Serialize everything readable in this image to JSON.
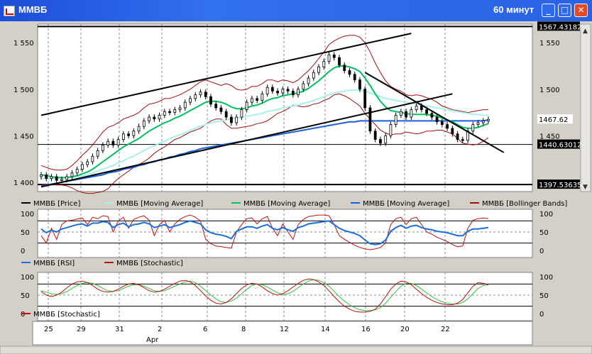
{
  "window": {
    "title": "ММВБ",
    "interval": "60 минут",
    "buttons": {
      "minimize_icon": "minimize-icon",
      "maximize_icon": "maximize-icon",
      "close_icon": "close-icon"
    }
  },
  "colors": {
    "price": "#000000",
    "ma_fast": "#00c060",
    "ma_mid": "#a8f0e8",
    "ma_slow": "#1a5fd8",
    "bollinger": "#a01010",
    "rsi": "#1a6fd8",
    "stoch_k": "#c01010",
    "stoch_d": "#30c040",
    "background": "#ffffff"
  },
  "chart_data": [
    {
      "type": "candlestick",
      "title": "",
      "ylim": [
        1390,
        1570
      ],
      "yticks": [
        "1 550",
        "1 500",
        "1 450",
        "1 400"
      ],
      "right_ticks": [
        "1 550",
        "1 500",
        "1 450"
      ],
      "price_labels": [
        "1567.43182",
        "1467.62",
        "1440.63012",
        "1397.53635"
      ],
      "horizontal_levels": [
        1567.43,
        1440.63,
        1397.54
      ],
      "close": [
        1408,
        1404,
        1406,
        1402,
        1403,
        1406,
        1410,
        1414,
        1419,
        1422,
        1428,
        1434,
        1440,
        1444,
        1440,
        1446,
        1452,
        1450,
        1455,
        1460,
        1466,
        1470,
        1468,
        1472,
        1476,
        1475,
        1478,
        1480,
        1486,
        1490,
        1494,
        1497,
        1492,
        1484,
        1480,
        1476,
        1470,
        1464,
        1470,
        1478,
        1486,
        1490,
        1488,
        1495,
        1502,
        1498,
        1496,
        1500,
        1498,
        1494,
        1500,
        1506,
        1512,
        1518,
        1524,
        1530,
        1537,
        1534,
        1526,
        1520,
        1516,
        1510,
        1500,
        1480,
        1455,
        1446,
        1442,
        1450,
        1462,
        1472,
        1476,
        1470,
        1478,
        1482,
        1478,
        1474,
        1470,
        1465,
        1462,
        1458,
        1452,
        1446,
        1445,
        1455,
        1462,
        1464,
        1466,
        1467.62
      ],
      "series": [
        {
          "name": "ММВБ [Price]"
        },
        {
          "name": "ММВБ [Moving Average]",
          "values": [
            1408,
            1407,
            1406,
            1405,
            1405,
            1405,
            1406,
            1407,
            1409,
            1411,
            1414,
            1418,
            1422,
            1426,
            1430,
            1434,
            1438,
            1441,
            1444,
            1447,
            1451,
            1455,
            1458,
            1461,
            1464,
            1466,
            1469,
            1471,
            1474,
            1477,
            1480,
            1483,
            1486,
            1487,
            1487,
            1486,
            1484,
            1481,
            1479,
            1479,
            1480,
            1482,
            1483,
            1485,
            1488,
            1490,
            1491,
            1493,
            1494,
            1495,
            1496,
            1498,
            1501,
            1505,
            1509,
            1514,
            1519,
            1523,
            1525,
            1525,
            1524,
            1522,
            1519,
            1512,
            1504,
            1495,
            1487,
            1481,
            1477,
            1476,
            1475,
            1474,
            1473,
            1473,
            1473,
            1473,
            1472,
            1471,
            1469,
            1467,
            1465,
            1462,
            1459,
            1458,
            1458,
            1459,
            1461,
            1463
          ]
        },
        {
          "name": "ММВБ [Moving Average]",
          "values": [
            1404,
            1404,
            1404,
            1404,
            1404,
            1405,
            1405,
            1406,
            1407,
            1408,
            1410,
            1412,
            1414,
            1416,
            1418,
            1421,
            1423,
            1426,
            1428,
            1431,
            1434,
            1437,
            1439,
            1442,
            1444,
            1447,
            1449,
            1451,
            1453,
            1456,
            1458,
            1460,
            1462,
            1464,
            1465,
            1466,
            1467,
            1468,
            1469,
            1470,
            1471,
            1472,
            1473,
            1474,
            1476,
            1477,
            1478,
            1480,
            1481,
            1482,
            1483,
            1485,
            1486,
            1488,
            1490,
            1492,
            1494,
            1496,
            1497,
            1498,
            1499,
            1499,
            1499,
            1498,
            1496,
            1494,
            1492,
            1490,
            1489,
            1488,
            1487,
            1486,
            1485,
            1484,
            1483,
            1482,
            1481,
            1480,
            1479,
            1478,
            1477,
            1476,
            1475,
            1474,
            1473,
            1473,
            1472,
            1472
          ]
        },
        {
          "name": "ММВБ [Moving Average]",
          "values": [
            1396,
            1397,
            1398,
            1399,
            1400,
            1401,
            1402,
            1403,
            1404,
            1405,
            1406,
            1407,
            1408,
            1410,
            1411,
            1412,
            1414,
            1415,
            1416,
            1418,
            1419,
            1421,
            1422,
            1424,
            1425,
            1427,
            1428,
            1430,
            1431,
            1433,
            1434,
            1436,
            1437,
            1438,
            1439,
            1440,
            1441,
            1442,
            1443,
            1444,
            1445,
            1446,
            1447,
            1448,
            1449,
            1450,
            1451,
            1452,
            1453,
            1454,
            1455,
            1456,
            1457,
            1458,
            1459,
            1460,
            1461,
            1462,
            1463,
            1464,
            1465,
            1465,
            1466,
            1466,
            1466,
            1466,
            1466,
            1466,
            1466,
            1466,
            1466,
            1466,
            1466,
            1466,
            1466,
            1466,
            1466,
            1466,
            1466,
            1466,
            1466,
            1466,
            1466,
            1466,
            1466,
            1466,
            1466,
            1467
          ]
        },
        {
          "name": "ММВБ [Bollinger Bands]",
          "upper": [
            1418,
            1416,
            1414,
            1413,
            1413,
            1414,
            1418,
            1423,
            1429,
            1434,
            1440,
            1447,
            1454,
            1459,
            1461,
            1464,
            1468,
            1470,
            1472,
            1475,
            1480,
            1484,
            1485,
            1487,
            1490,
            1490,
            1492,
            1494,
            1497,
            1500,
            1504,
            1508,
            1510,
            1508,
            1506,
            1504,
            1506,
            1504,
            1500,
            1499,
            1500,
            1503,
            1503,
            1506,
            1510,
            1510,
            1508,
            1510,
            1509,
            1507,
            1510,
            1515,
            1520,
            1526,
            1533,
            1540,
            1548,
            1552,
            1555,
            1557,
            1558,
            1558,
            1556,
            1550,
            1540,
            1528,
            1518,
            1509,
            1503,
            1500,
            1498,
            1494,
            1493,
            1494,
            1493,
            1491,
            1489,
            1486,
            1482,
            1480,
            1478,
            1477,
            1476,
            1475,
            1476,
            1477,
            1478,
            1478
          ],
          "lower": [
            1398,
            1398,
            1398,
            1397,
            1397,
            1396,
            1394,
            1391,
            1389,
            1388,
            1388,
            1389,
            1390,
            1393,
            1399,
            1404,
            1408,
            1412,
            1416,
            1419,
            1422,
            1426,
            1431,
            1435,
            1438,
            1442,
            1446,
            1448,
            1451,
            1454,
            1456,
            1458,
            1462,
            1466,
            1468,
            1468,
            1462,
            1458,
            1458,
            1459,
            1460,
            1461,
            1463,
            1464,
            1466,
            1470,
            1474,
            1476,
            1479,
            1483,
            1482,
            1481,
            1482,
            1484,
            1485,
            1488,
            1490,
            1494,
            1495,
            1493,
            1490,
            1486,
            1482,
            1474,
            1468,
            1462,
            1456,
            1453,
            1451,
            1452,
            1452,
            1454,
            1453,
            1452,
            1453,
            1455,
            1455,
            1456,
            1456,
            1454,
            1452,
            1447,
            1442,
            1441,
            1440,
            1441,
            1444,
            1448
          ]
        }
      ],
      "trendlines": [
        {
          "x": [
            0,
            72
          ],
          "y": [
            1472,
            1560
          ]
        },
        {
          "x": [
            0,
            80
          ],
          "y": [
            1395,
            1495
          ]
        },
        {
          "x": [
            63,
            90
          ],
          "y": [
            1518,
            1432
          ]
        }
      ]
    },
    {
      "type": "line",
      "ylim": [
        0,
        100
      ],
      "yticks": [
        "100",
        "50",
        "0"
      ],
      "series": [
        {
          "name": "ММВБ [RSI]",
          "values": [
            58,
            48,
            55,
            50,
            58,
            62,
            66,
            70,
            72,
            66,
            74,
            74,
            78,
            76,
            62,
            70,
            74,
            64,
            70,
            72,
            76,
            72,
            62,
            66,
            70,
            62,
            66,
            70,
            76,
            80,
            76,
            72,
            56,
            48,
            44,
            42,
            38,
            32,
            52,
            58,
            64,
            64,
            60,
            66,
            70,
            60,
            56,
            62,
            56,
            52,
            62,
            66,
            72,
            74,
            76,
            78,
            80,
            70,
            60,
            54,
            50,
            46,
            40,
            28,
            18,
            16,
            18,
            28,
            52,
            62,
            68,
            60,
            66,
            68,
            62,
            58,
            56,
            52,
            50,
            48,
            44,
            40,
            40,
            52,
            58,
            58,
            60,
            62
          ]
        },
        {
          "name": "ММВБ [Stochastic]",
          "values": [
            40,
            20,
            60,
            30,
            70,
            80,
            82,
            85,
            88,
            70,
            90,
            86,
            94,
            92,
            50,
            80,
            90,
            60,
            84,
            90,
            94,
            82,
            40,
            70,
            82,
            50,
            72,
            84,
            92,
            96,
            90,
            80,
            30,
            18,
            12,
            10,
            8,
            6,
            50,
            70,
            86,
            88,
            72,
            86,
            92,
            60,
            40,
            72,
            50,
            30,
            70,
            84,
            92,
            94,
            96,
            96,
            94,
            70,
            40,
            30,
            22,
            14,
            8,
            4,
            2,
            4,
            8,
            20,
            70,
            86,
            90,
            70,
            86,
            90,
            70,
            50,
            44,
            36,
            30,
            24,
            16,
            10,
            12,
            60,
            82,
            86,
            88,
            86
          ]
        }
      ],
      "levels": [
        80,
        50,
        20
      ]
    },
    {
      "type": "line",
      "ylim": [
        0,
        100
      ],
      "yticks": [
        "100",
        "50",
        "0"
      ],
      "series": [
        {
          "name": "ММВБ [Stochastic]",
          "values": [
            60,
            50,
            46,
            50,
            58,
            70,
            80,
            86,
            88,
            84,
            76,
            66,
            60,
            58,
            60,
            66,
            74,
            80,
            82,
            78,
            70,
            62,
            58,
            60,
            66,
            74,
            82,
            88,
            90,
            86,
            76,
            62,
            48,
            36,
            28,
            26,
            30,
            40,
            54,
            68,
            78,
            82,
            80,
            72,
            62,
            54,
            50,
            54,
            62,
            72,
            82,
            90,
            94,
            92,
            86,
            76,
            62,
            46,
            32,
            20,
            12,
            6,
            4,
            4,
            6,
            12,
            26,
            46,
            66,
            80,
            88,
            86,
            78,
            66,
            54,
            44,
            36,
            30,
            26,
            24,
            24,
            28,
            38,
            56,
            74,
            84,
            82,
            78
          ]
        },
        {
          "name": "",
          "values": [
            62,
            58,
            54,
            52,
            54,
            60,
            68,
            76,
            82,
            84,
            82,
            76,
            68,
            62,
            60,
            62,
            68,
            74,
            78,
            78,
            74,
            68,
            62,
            60,
            62,
            68,
            74,
            80,
            86,
            88,
            84,
            74,
            62,
            50,
            40,
            32,
            30,
            34,
            42,
            54,
            66,
            76,
            80,
            78,
            72,
            64,
            56,
            52,
            54,
            60,
            70,
            80,
            88,
            92,
            90,
            84,
            74,
            60,
            46,
            34,
            24,
            16,
            10,
            8,
            8,
            10,
            16,
            28,
            44,
            60,
            74,
            82,
            82,
            76,
            66,
            56,
            46,
            38,
            32,
            28,
            26,
            26,
            30,
            40,
            54,
            68,
            76,
            78
          ]
        }
      ],
      "levels": [
        80,
        50,
        20
      ]
    }
  ],
  "x_axis": {
    "labels": [
      "25",
      "29",
      "31",
      "2",
      "6",
      "8",
      "12",
      "14",
      "16",
      "20",
      "22"
    ],
    "month": "Apr"
  }
}
